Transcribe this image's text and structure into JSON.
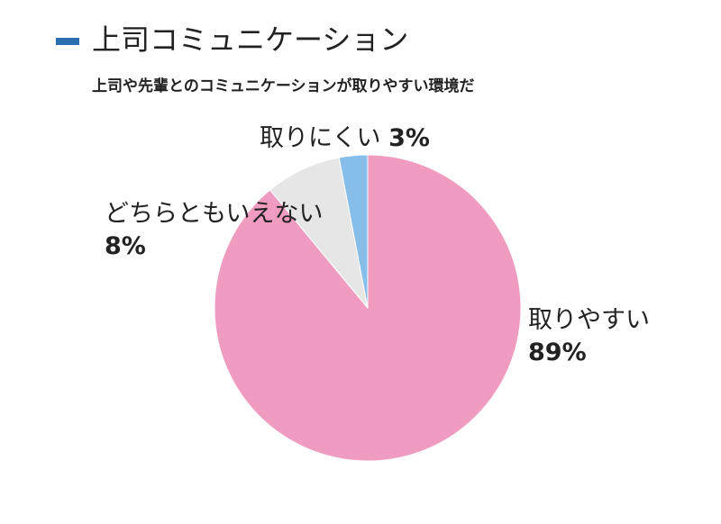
{
  "legend": {
    "marker_color": "#2a6fb0"
  },
  "chart_data": {
    "type": "pie",
    "title": "上司コミュニケーション",
    "subtitle": "上司や先輩とのコミュニケーションが取りやすい環境だ",
    "start_angle": "top",
    "direction": "clockwise",
    "slices": [
      {
        "label": "取りやすい",
        "value": 89,
        "value_label": "89%",
        "color": "#f09bc0"
      },
      {
        "label": "どちらともいえない",
        "value": 8,
        "value_label": "8%",
        "color": "#e6e6e6"
      },
      {
        "label": "取りにくい",
        "value": 3,
        "value_label": "3%",
        "color": "#86bde9"
      }
    ]
  }
}
